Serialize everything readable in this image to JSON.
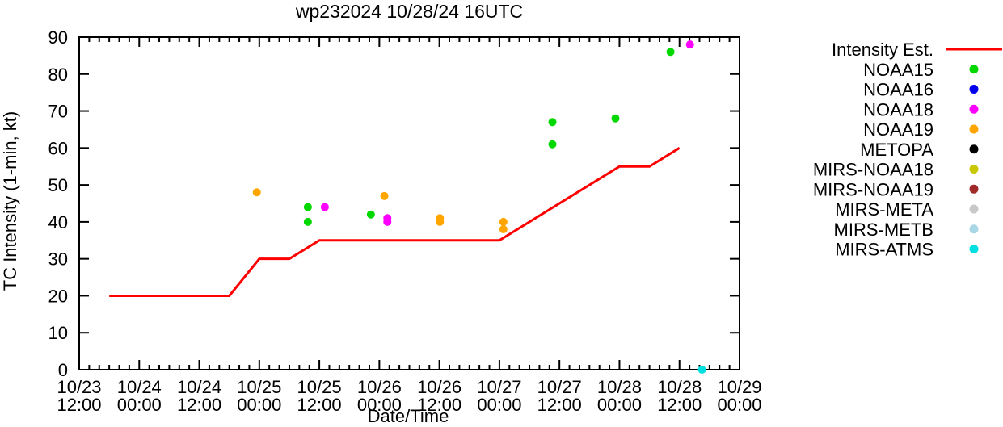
{
  "title": "wp232024 10/28/24 16UTC",
  "chart_data": {
    "type": "line+scatter",
    "title": "wp232024 10/28/24 16UTC",
    "xlabel": "Date/Time",
    "ylabel": "TC Intensity (1-min, kt)",
    "ylim": [
      0,
      90
    ],
    "y_ticks": [
      0,
      10,
      20,
      30,
      40,
      50,
      60,
      70,
      80,
      90
    ],
    "x_range_hours": [
      0,
      132
    ],
    "x_unit": "hours since 10/23 12:00 UTC",
    "x_minor_tick_step_hours": 2,
    "grid": false,
    "legend_position": "outside-top-right",
    "x_ticks": [
      {
        "hours": 0,
        "date": "10/23",
        "time": "12:00"
      },
      {
        "hours": 12,
        "date": "10/24",
        "time": "00:00"
      },
      {
        "hours": 24,
        "date": "10/24",
        "time": "12:00"
      },
      {
        "hours": 36,
        "date": "10/25",
        "time": "00:00"
      },
      {
        "hours": 48,
        "date": "10/25",
        "time": "12:00"
      },
      {
        "hours": 60,
        "date": "10/26",
        "time": "00:00"
      },
      {
        "hours": 72,
        "date": "10/26",
        "time": "12:00"
      },
      {
        "hours": 84,
        "date": "10/27",
        "time": "00:00"
      },
      {
        "hours": 96,
        "date": "10/27",
        "time": "12:00"
      },
      {
        "hours": 108,
        "date": "10/28",
        "time": "00:00"
      },
      {
        "hours": 120,
        "date": "10/28",
        "time": "12:00"
      },
      {
        "hours": 132,
        "date": "10/29",
        "time": "00:00"
      }
    ],
    "line_series": {
      "name": "Intensity Est.",
      "color": "#ff0000",
      "points_h_kt": [
        [
          6,
          20
        ],
        [
          30,
          20
        ],
        [
          36,
          30
        ],
        [
          42,
          30
        ],
        [
          48,
          35
        ],
        [
          84,
          35
        ],
        [
          108,
          55
        ],
        [
          114,
          55
        ],
        [
          120,
          60
        ]
      ]
    },
    "scatter_series": [
      {
        "name": "NOAA15",
        "color": "#00d800",
        "points_h_kt": [
          [
            45.7,
            44
          ],
          [
            45.7,
            40
          ],
          [
            58.3,
            42
          ],
          [
            94.6,
            67
          ],
          [
            94.6,
            61
          ],
          [
            107.2,
            68
          ],
          [
            118.2,
            86
          ]
        ]
      },
      {
        "name": "NOAA16",
        "color": "#0000ee",
        "points_h_kt": []
      },
      {
        "name": "NOAA18",
        "color": "#ff00ff",
        "points_h_kt": [
          [
            49.1,
            44
          ],
          [
            61.6,
            41
          ],
          [
            61.6,
            40
          ],
          [
            122.1,
            88
          ]
        ]
      },
      {
        "name": "NOAA19",
        "color": "#ffa500",
        "points_h_kt": [
          [
            35.5,
            48
          ],
          [
            61.0,
            47
          ],
          [
            72.1,
            41
          ],
          [
            72.1,
            40
          ],
          [
            84.8,
            40
          ],
          [
            84.8,
            38
          ]
        ]
      },
      {
        "name": "METOPA",
        "color": "#000000",
        "points_h_kt": []
      },
      {
        "name": "MIRS-NOAA18",
        "color": "#c8c800",
        "points_h_kt": []
      },
      {
        "name": "MIRS-NOAA19",
        "color": "#a02a2a",
        "points_h_kt": []
      },
      {
        "name": "MIRS-META",
        "color": "#c8c8c8",
        "points_h_kt": []
      },
      {
        "name": "MIRS-METB",
        "color": "#aad7e6",
        "points_h_kt": []
      },
      {
        "name": "MIRS-ATMS",
        "color": "#00e0e0",
        "points_h_kt": [
          [
            124.5,
            0
          ]
        ]
      }
    ]
  }
}
